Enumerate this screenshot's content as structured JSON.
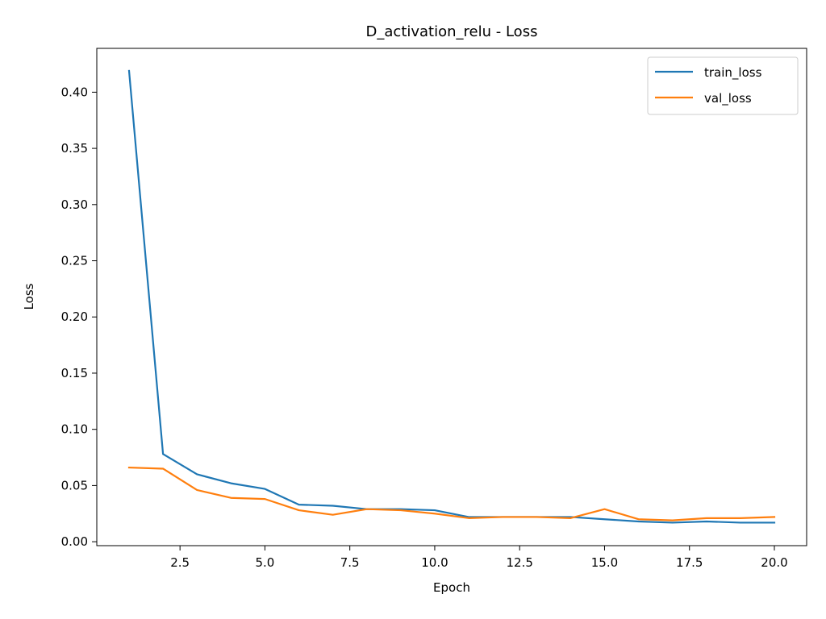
{
  "chart_data": {
    "type": "line",
    "title": "D_activation_relu - Loss",
    "xlabel": "Epoch",
    "ylabel": "Loss",
    "xlim": [
      0.05,
      20.95
    ],
    "ylim": [
      -0.0035,
      0.439
    ],
    "xticks": [
      2.5,
      5.0,
      7.5,
      10.0,
      12.5,
      15.0,
      17.5,
      20.0
    ],
    "xtick_labels": [
      "2.5",
      "5.0",
      "7.5",
      "10.0",
      "12.5",
      "15.0",
      "17.5",
      "20.0"
    ],
    "yticks": [
      0.0,
      0.05,
      0.1,
      0.15,
      0.2,
      0.25,
      0.3,
      0.35,
      0.4
    ],
    "ytick_labels": [
      "0.00",
      "0.05",
      "0.10",
      "0.15",
      "0.20",
      "0.25",
      "0.30",
      "0.35",
      "0.40"
    ],
    "grid": false,
    "legend_position": "top-right",
    "x": [
      1,
      2,
      3,
      4,
      5,
      6,
      7,
      8,
      9,
      10,
      11,
      12,
      13,
      14,
      15,
      16,
      17,
      18,
      19,
      20
    ],
    "series": [
      {
        "name": "train_loss",
        "color": "#1f77b4",
        "values": [
          0.419,
          0.078,
          0.06,
          0.052,
          0.047,
          0.033,
          0.032,
          0.029,
          0.029,
          0.028,
          0.022,
          0.022,
          0.022,
          0.022,
          0.02,
          0.018,
          0.017,
          0.018,
          0.017,
          0.017
        ]
      },
      {
        "name": "val_loss",
        "color": "#ff7f0e",
        "values": [
          0.066,
          0.065,
          0.046,
          0.039,
          0.038,
          0.028,
          0.024,
          0.029,
          0.028,
          0.025,
          0.021,
          0.022,
          0.022,
          0.021,
          0.029,
          0.02,
          0.019,
          0.021,
          0.021,
          0.022
        ]
      }
    ]
  }
}
